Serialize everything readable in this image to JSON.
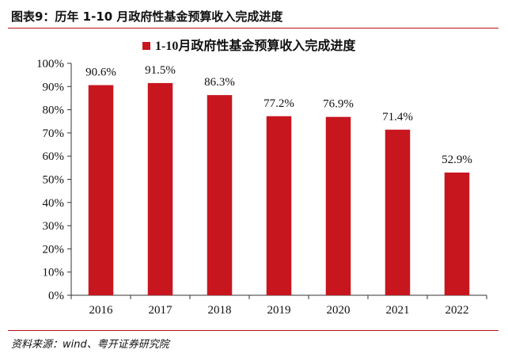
{
  "figure_title": "图表9：历年 1-10 月政府性基金预算收入完成进度",
  "source_note": "资料来源：wind、粤开证券研究院",
  "colors": {
    "bar": "#c8161e",
    "rule": "#b8121b",
    "axis": "#333333",
    "text": "#111111"
  },
  "chart_data": {
    "type": "bar",
    "categories": [
      "2016",
      "2017",
      "2018",
      "2019",
      "2020",
      "2021",
      "2022"
    ],
    "series": [
      {
        "name": "1-10月政府性基金预算收入完成进度",
        "values": [
          90.6,
          91.5,
          86.3,
          77.2,
          76.9,
          71.4,
          52.9
        ],
        "labels": [
          "90.6%",
          "91.5%",
          "86.3%",
          "77.2%",
          "76.9%",
          "71.4%",
          "52.9%"
        ]
      }
    ],
    "ylim": [
      0,
      100
    ],
    "yticks": [
      0,
      10,
      20,
      30,
      40,
      50,
      60,
      70,
      80,
      90,
      100
    ],
    "ytick_labels": [
      "0%",
      "10%",
      "20%",
      "30%",
      "40%",
      "50%",
      "60%",
      "70%",
      "80%",
      "90%",
      "100%"
    ],
    "grid": false,
    "legend": "top-center"
  }
}
